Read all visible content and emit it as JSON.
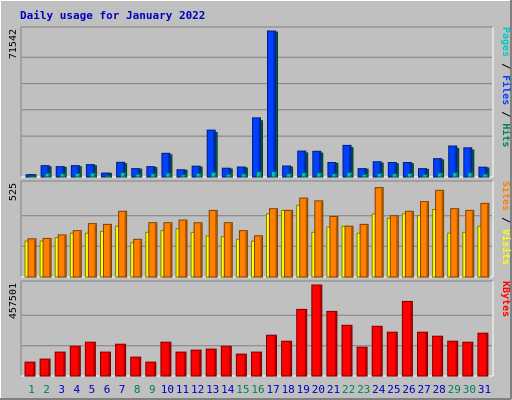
{
  "title": "Daily usage for January 2022",
  "colors": {
    "background": "#c0c0c0",
    "title": "#0000c0",
    "hits": "#00805c",
    "files": "#0040ff",
    "pages": "#00c8c8",
    "visits": "#ffff00",
    "sites": "#ff8000",
    "kbytes": "#ff0000",
    "grid": "#808080",
    "weekday_label": "#0000c0",
    "weekend_label": "#00805c"
  },
  "chart_data": [
    {
      "type": "bar",
      "panel": "hits-files-pages",
      "ymax_label": "71542",
      "ylim": [
        0,
        71542
      ],
      "legend": [
        {
          "text": "Pages",
          "key": "pages"
        },
        {
          "text": " / ",
          "key": "separator"
        },
        {
          "text": "Files",
          "key": "files"
        },
        {
          "text": " / ",
          "key": "separator"
        },
        {
          "text": "Hits",
          "key": "hits"
        }
      ],
      "categories": [
        "1",
        "2",
        "3",
        "4",
        "5",
        "6",
        "7",
        "8",
        "9",
        "10",
        "11",
        "12",
        "13",
        "14",
        "15",
        "16",
        "17",
        "18",
        "19",
        "20",
        "21",
        "22",
        "23",
        "24",
        "25",
        "26",
        "27",
        "28",
        "29",
        "30",
        "31"
      ],
      "series": [
        {
          "key": "hits",
          "values": [
            1200,
            5000,
            4700,
            5100,
            5600,
            1800,
            6500,
            3800,
            4600,
            10900,
            3300,
            4900,
            21800,
            3900,
            4400,
            27600,
            71000,
            4900,
            11800,
            11700,
            6600,
            14400,
            3800,
            6800,
            6500,
            6500,
            3700,
            8400,
            14000,
            13200,
            4400
          ]
        },
        {
          "key": "files",
          "values": [
            1100,
            5600,
            5100,
            5600,
            6100,
            1900,
            7200,
            4100,
            5100,
            11600,
            3600,
            5300,
            23000,
            4300,
            4900,
            29000,
            71542,
            5400,
            12700,
            12600,
            7100,
            15500,
            4100,
            7500,
            7100,
            7100,
            4100,
            9000,
            15200,
            14300,
            4800
          ]
        },
        {
          "key": "pages",
          "values": [
            500,
            1800,
            1600,
            1700,
            1900,
            600,
            2200,
            1300,
            1600,
            1900,
            1100,
            1700,
            2300,
            1300,
            1500,
            2500,
            2600,
            1600,
            2100,
            2000,
            1600,
            2200,
            1300,
            1700,
            1600,
            1700,
            1200,
            1900,
            2100,
            2000,
            1400
          ]
        }
      ]
    },
    {
      "type": "bar",
      "panel": "visits-sites",
      "ymax_label": "525",
      "ylim": [
        0,
        525
      ],
      "legend": [
        {
          "text": "Sites",
          "key": "sites"
        },
        {
          "text": " / ",
          "key": "separator"
        },
        {
          "text": "Visits",
          "key": "visits"
        }
      ],
      "categories": [
        "1",
        "2",
        "3",
        "4",
        "5",
        "6",
        "7",
        "8",
        "9",
        "10",
        "11",
        "12",
        "13",
        "14",
        "15",
        "16",
        "17",
        "18",
        "19",
        "20",
        "21",
        "22",
        "23",
        "24",
        "25",
        "26",
        "27",
        "28",
        "29",
        "30",
        "31"
      ],
      "series": [
        {
          "key": "visits",
          "values": [
            205,
            205,
            225,
            250,
            250,
            260,
            290,
            195,
            255,
            265,
            275,
            255,
            235,
            230,
            215,
            205,
            360,
            380,
            410,
            255,
            285,
            290,
            250,
            360,
            335,
            360,
            350,
            385,
            250,
            255,
            290
          ]
        },
        {
          "key": "sites",
          "values": [
            218,
            220,
            240,
            265,
            305,
            300,
            375,
            215,
            310,
            310,
            325,
            310,
            380,
            310,
            265,
            235,
            390,
            380,
            450,
            435,
            345,
            290,
            300,
            510,
            350,
            375,
            430,
            495,
            390,
            380,
            420
          ]
        }
      ]
    },
    {
      "type": "bar",
      "panel": "kbytes",
      "ymax_label": "457501",
      "ylim": [
        0,
        457501
      ],
      "legend": [
        {
          "text": "KBytes",
          "key": "kbytes"
        }
      ],
      "categories": [
        "1",
        "2",
        "3",
        "4",
        "5",
        "6",
        "7",
        "8",
        "9",
        "10",
        "11",
        "12",
        "13",
        "14",
        "15",
        "16",
        "17",
        "18",
        "19",
        "20",
        "21",
        "22",
        "23",
        "24",
        "25",
        "26",
        "27",
        "28",
        "29",
        "30",
        "31"
      ],
      "series": [
        {
          "key": "kbytes",
          "values": [
            70000,
            85000,
            120000,
            150000,
            170000,
            120000,
            160000,
            95000,
            70000,
            170000,
            120000,
            130000,
            135000,
            150000,
            110000,
            120000,
            205000,
            175000,
            335000,
            457501,
            325000,
            255000,
            145000,
            250000,
            220000,
            375000,
            220000,
            200000,
            175000,
            170000,
            215000
          ]
        }
      ]
    }
  ]
}
